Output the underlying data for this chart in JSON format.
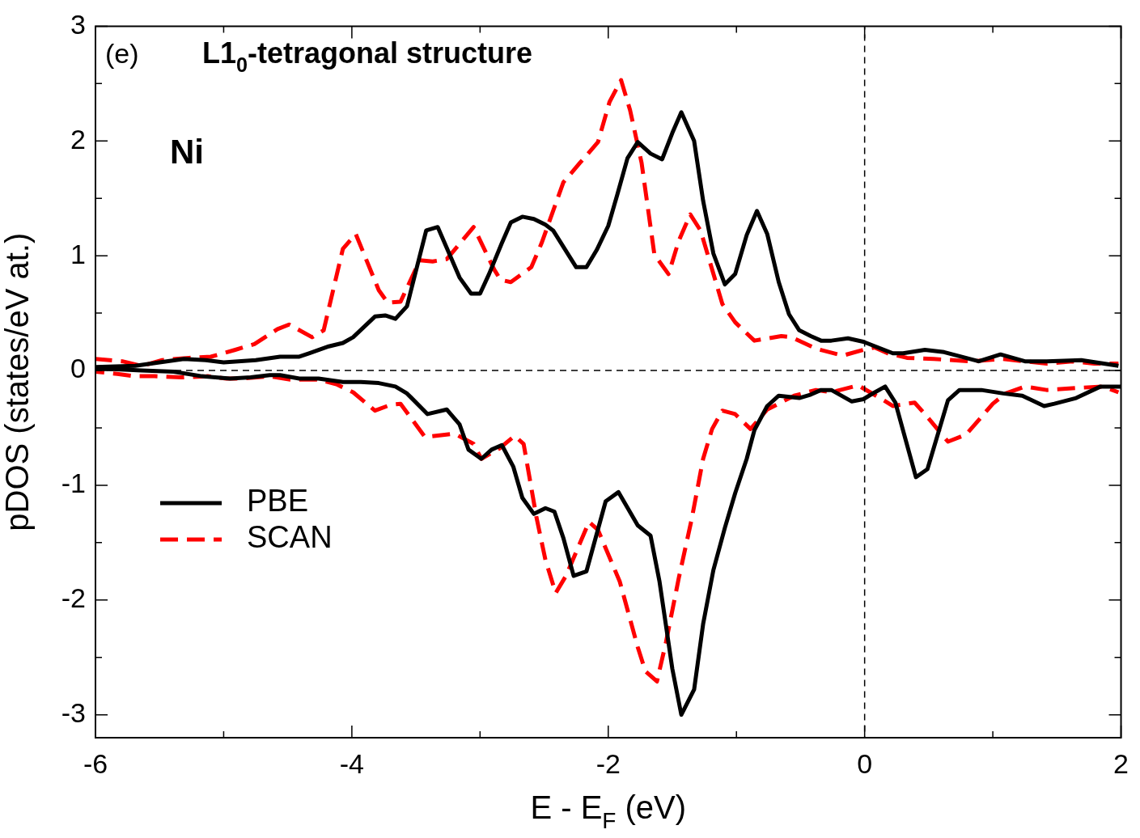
{
  "chart_data": {
    "type": "line",
    "title": "L1$_{0}$-tetragonal structure",
    "xlabel": "E - E$_{F}$ (eV)",
    "ylabel": "pDOS (states/eV at.)",
    "annotations": [
      "(e)",
      "Ni"
    ],
    "xlim": [
      -6,
      2
    ],
    "xticks": [
      -6,
      {
        "value": -5,
        "label": null
      },
      -4,
      {
        "value": -3,
        "label": null
      },
      -2,
      {
        "value": -1,
        "label": null
      },
      0,
      {
        "value": 1,
        "label": null
      },
      2
    ],
    "ylim": [
      -3.2,
      3
    ],
    "yticks": [
      -3,
      {
        "value": -2.5,
        "label": null
      },
      -2,
      {
        "value": -1.5,
        "label": null
      },
      -1,
      {
        "value": -0.5,
        "label": null
      },
      0,
      {
        "value": 0.5,
        "label": null
      },
      1,
      {
        "value": 1.5,
        "label": null
      },
      2,
      {
        "value": 2.5,
        "label": null
      },
      3
    ],
    "grid": false,
    "legend": "bottom left",
    "marker": "none",
    "ref_lines": [
      {
        "axis": "y",
        "value": 0,
        "color": "#000000",
        "line_style": "dashed"
      },
      {
        "axis": "x",
        "value": 0,
        "color": "#000000",
        "line_style": "dashed"
      }
    ],
    "series": [
      {
        "name": "PBE",
        "color": "#000000",
        "line_style": "solid",
        "x": [
          -6,
          -5.69,
          -5.31,
          -5.14,
          -5.0,
          -4.75,
          -4.56,
          -4.41,
          -4.33,
          -4.18,
          -4.07,
          -3.99,
          -3.82,
          -3.74,
          -3.66,
          -3.57,
          -3.42,
          -3.33,
          -3.16,
          -3.07,
          -3.0,
          -2.93,
          -2.83,
          -2.76,
          -2.67,
          -2.58,
          -2.49,
          -2.43,
          -2.25,
          -2.17,
          -2.09,
          -2.0,
          -1.93,
          -1.85,
          -1.77,
          -1.67,
          -1.58,
          -1.5,
          -1.43,
          -1.33,
          -1.26,
          -1.18,
          -1.09,
          -1.01,
          -0.92,
          -0.84,
          -0.76,
          -0.67,
          -0.59,
          -0.51,
          -0.42,
          -0.34,
          -0.26,
          -0.13,
          -0.01,
          0.22,
          0.3,
          0.47,
          0.62,
          0.89,
          1.06,
          1.25,
          1.42,
          1.69,
          1.98
        ],
        "values": [
          0.03,
          0.04,
          0.1,
          0.09,
          0.07,
          0.09,
          0.12,
          0.12,
          0.15,
          0.21,
          0.24,
          0.29,
          0.47,
          0.48,
          0.45,
          0.56,
          1.22,
          1.25,
          0.81,
          0.67,
          0.67,
          0.84,
          1.11,
          1.29,
          1.34,
          1.32,
          1.27,
          1.22,
          0.9,
          0.9,
          1.05,
          1.26,
          1.53,
          1.85,
          1.99,
          1.89,
          1.84,
          2.07,
          2.25,
          2.0,
          1.48,
          1.02,
          0.75,
          0.84,
          1.18,
          1.39,
          1.19,
          0.77,
          0.49,
          0.35,
          0.3,
          0.26,
          0.26,
          0.28,
          0.25,
          0.15,
          0.15,
          0.18,
          0.16,
          0.08,
          0.14,
          0.08,
          0.08,
          0.09,
          0.04
        ]
      },
      {
        "name": "SCAN",
        "color": "#ff0000",
        "line_style": "dashed",
        "x": [
          -6,
          -5.79,
          -5.64,
          -5.48,
          -5.27,
          -5.1,
          -4.91,
          -4.76,
          -4.58,
          -4.49,
          -4.31,
          -4.22,
          -4.07,
          -3.97,
          -3.79,
          -3.72,
          -3.62,
          -3.47,
          -3.37,
          -3.26,
          -3.05,
          -2.89,
          -2.84,
          -2.76,
          -2.6,
          -2.52,
          -2.35,
          -2.22,
          -2.08,
          -1.99,
          -1.9,
          -1.83,
          -1.74,
          -1.64,
          -1.53,
          -1.45,
          -1.36,
          -1.28,
          -1.11,
          -1.01,
          -0.86,
          -0.65,
          -0.57,
          -0.38,
          -0.17,
          -0.01,
          0.08,
          0.18,
          0.33,
          0.54,
          0.83,
          1.08,
          1.25,
          1.42,
          1.62,
          1.79,
          1.98
        ],
        "values": [
          0.1,
          0.08,
          0.04,
          0.09,
          0.11,
          0.12,
          0.18,
          0.23,
          0.36,
          0.4,
          0.29,
          0.35,
          1.06,
          1.19,
          0.7,
          0.59,
          0.6,
          0.96,
          0.95,
          0.97,
          1.25,
          0.88,
          0.79,
          0.77,
          0.9,
          1.11,
          1.64,
          1.81,
          1.99,
          2.34,
          2.53,
          2.27,
          1.81,
          1.01,
          0.84,
          1.13,
          1.36,
          1.22,
          0.58,
          0.42,
          0.26,
          0.3,
          0.29,
          0.19,
          0.13,
          0.18,
          0.2,
          0.15,
          0.11,
          0.1,
          0.08,
          0.1,
          0.08,
          0.06,
          0.08,
          0.06,
          0.06
        ]
      },
      {
        "color": "#000000",
        "line_style": "solid",
        "x": [
          -6,
          -5.64,
          -5.39,
          -5.17,
          -4.95,
          -4.79,
          -4.64,
          -4.56,
          -4.41,
          -4.26,
          -4.07,
          -3.93,
          -3.79,
          -3.66,
          -3.57,
          -3.41,
          -3.26,
          -3.16,
          -3.09,
          -2.99,
          -2.91,
          -2.83,
          -2.74,
          -2.67,
          -2.58,
          -2.49,
          -2.42,
          -2.35,
          -2.27,
          -2.17,
          -2.02,
          -1.92,
          -1.77,
          -1.67,
          -1.6,
          -1.5,
          -1.43,
          -1.33,
          -1.26,
          -1.18,
          -1.09,
          -1.01,
          -0.92,
          -0.86,
          -0.76,
          -0.67,
          -0.51,
          -0.42,
          -0.34,
          -0.26,
          -0.1,
          -0.01,
          0.08,
          0.16,
          0.24,
          0.4,
          0.49,
          0.65,
          0.74,
          0.91,
          1.08,
          1.23,
          1.4,
          1.48,
          1.65,
          1.84,
          2.0
        ],
        "values": [
          0.02,
          0.0,
          -0.01,
          -0.05,
          -0.07,
          -0.06,
          -0.04,
          -0.04,
          -0.07,
          -0.07,
          -0.1,
          -0.1,
          -0.11,
          -0.14,
          -0.2,
          -0.38,
          -0.34,
          -0.47,
          -0.69,
          -0.77,
          -0.69,
          -0.65,
          -0.84,
          -1.11,
          -1.25,
          -1.2,
          -1.23,
          -1.46,
          -1.79,
          -1.75,
          -1.14,
          -1.06,
          -1.35,
          -1.44,
          -1.84,
          -2.6,
          -3.0,
          -2.78,
          -2.21,
          -1.74,
          -1.37,
          -1.07,
          -0.77,
          -0.52,
          -0.31,
          -0.22,
          -0.24,
          -0.21,
          -0.17,
          -0.17,
          -0.27,
          -0.25,
          -0.19,
          -0.14,
          -0.28,
          -0.93,
          -0.86,
          -0.26,
          -0.17,
          -0.17,
          -0.2,
          -0.22,
          -0.31,
          -0.29,
          -0.24,
          -0.14,
          -0.14
        ]
      },
      {
        "color": "#ff0000",
        "line_style": "dashed",
        "x": [
          -6,
          -5.83,
          -5.69,
          -5.54,
          -5.33,
          -5.12,
          -4.98,
          -4.85,
          -4.64,
          -4.48,
          -4.26,
          -4.12,
          -3.99,
          -3.82,
          -3.7,
          -3.62,
          -3.43,
          -3.2,
          -3.05,
          -2.99,
          -2.85,
          -2.73,
          -2.66,
          -2.56,
          -2.49,
          -2.41,
          -2.33,
          -2.15,
          -2.08,
          -1.91,
          -1.77,
          -1.71,
          -1.62,
          -1.55,
          -1.45,
          -1.35,
          -1.26,
          -1.19,
          -1.11,
          -1.01,
          -0.89,
          -0.76,
          -0.55,
          -0.38,
          -0.26,
          -0.05,
          0.12,
          0.22,
          0.39,
          0.47,
          0.65,
          0.79,
          1.0,
          1.1,
          1.25,
          1.42,
          1.69,
          1.86,
          1.98
        ],
        "values": [
          -0.01,
          -0.03,
          -0.05,
          -0.05,
          -0.06,
          -0.05,
          -0.07,
          -0.07,
          -0.05,
          -0.08,
          -0.08,
          -0.12,
          -0.19,
          -0.35,
          -0.3,
          -0.29,
          -0.58,
          -0.55,
          -0.64,
          -0.77,
          -0.68,
          -0.57,
          -0.64,
          -1.28,
          -1.65,
          -1.94,
          -1.79,
          -1.32,
          -1.39,
          -1.84,
          -2.41,
          -2.62,
          -2.71,
          -2.37,
          -1.81,
          -1.3,
          -0.77,
          -0.51,
          -0.35,
          -0.38,
          -0.51,
          -0.34,
          -0.22,
          -0.17,
          -0.19,
          -0.13,
          -0.24,
          -0.31,
          -0.28,
          -0.38,
          -0.62,
          -0.56,
          -0.29,
          -0.2,
          -0.14,
          -0.17,
          -0.15,
          -0.14,
          -0.19
        ]
      }
    ]
  }
}
